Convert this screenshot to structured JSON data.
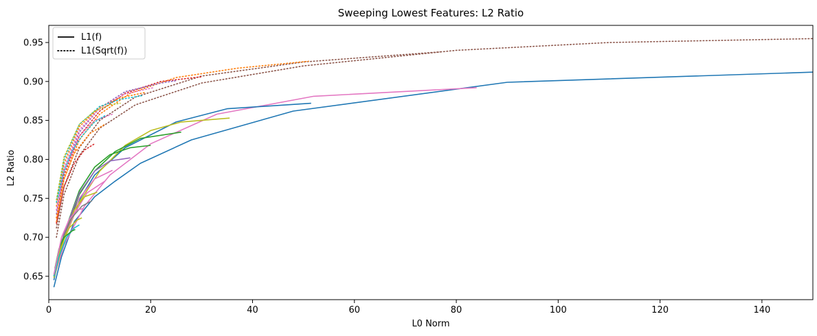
{
  "chart_data": {
    "type": "line",
    "title": "Sweeping Lowest Features: L2 Ratio",
    "xlabel": "L0 Norm",
    "ylabel": "L2 Ratio",
    "xlim": [
      0,
      150
    ],
    "ylim": [
      0.62,
      0.972
    ],
    "xticks": [
      0,
      20,
      40,
      60,
      80,
      100,
      120,
      140
    ],
    "yticks": [
      0.65,
      0.7,
      0.75,
      0.8,
      0.85,
      0.9,
      0.95
    ],
    "grid": false,
    "legend": {
      "placement": "top-left",
      "entries": [
        {
          "label": "L1(f)",
          "style": "solid"
        },
        {
          "label": "L1(Sqrt(f))",
          "style": "dotted"
        }
      ]
    },
    "series": [
      {
        "style": "solid",
        "color": "#1f77b4",
        "points": [
          [
            1.0,
            0.636
          ],
          [
            2.5,
            0.675
          ],
          [
            5,
            0.72
          ],
          [
            9,
            0.752
          ],
          [
            13,
            0.772
          ],
          [
            18,
            0.795
          ],
          [
            28,
            0.825
          ],
          [
            48,
            0.862
          ],
          [
            90,
            0.899
          ],
          [
            150,
            0.912
          ]
        ]
      },
      {
        "style": "solid",
        "color": "#e377c2",
        "points": [
          [
            1.0,
            0.648
          ],
          [
            3,
            0.69
          ],
          [
            7,
            0.74
          ],
          [
            12,
            0.78
          ],
          [
            20,
            0.82
          ],
          [
            33,
            0.858
          ],
          [
            52,
            0.881
          ],
          [
            84,
            0.892
          ]
        ]
      },
      {
        "style": "solid",
        "color": "#1f77b4",
        "points": [
          [
            1.0,
            0.645
          ],
          [
            2.5,
            0.69
          ],
          [
            5,
            0.737
          ],
          [
            9,
            0.78
          ],
          [
            15,
            0.815
          ],
          [
            25,
            0.848
          ],
          [
            35,
            0.865
          ],
          [
            51.5,
            0.872
          ]
        ]
      },
      {
        "style": "solid",
        "color": "#bcbd22",
        "points": [
          [
            1.0,
            0.648
          ],
          [
            3,
            0.697
          ],
          [
            6,
            0.745
          ],
          [
            10,
            0.785
          ],
          [
            15,
            0.818
          ],
          [
            20,
            0.837
          ],
          [
            26,
            0.848
          ],
          [
            35.5,
            0.853
          ]
        ]
      },
      {
        "style": "solid",
        "color": "#2ca02c",
        "points": [
          [
            1.0,
            0.65
          ],
          [
            3,
            0.703
          ],
          [
            6,
            0.755
          ],
          [
            9,
            0.785
          ],
          [
            13,
            0.81
          ],
          [
            18,
            0.827
          ],
          [
            26,
            0.835
          ]
        ]
      },
      {
        "style": "solid",
        "color": "#2ca02c",
        "points": [
          [
            1.0,
            0.652
          ],
          [
            3,
            0.705
          ],
          [
            6,
            0.76
          ],
          [
            9,
            0.79
          ],
          [
            12,
            0.806
          ],
          [
            16,
            0.815
          ],
          [
            20,
            0.818
          ]
        ]
      },
      {
        "style": "solid",
        "color": "#9467bd",
        "points": [
          [
            1.0,
            0.65
          ],
          [
            3,
            0.705
          ],
          [
            6,
            0.757
          ],
          [
            9,
            0.785
          ],
          [
            12,
            0.798
          ],
          [
            16,
            0.802
          ]
        ]
      },
      {
        "style": "solid",
        "color": "#e377c2",
        "points": [
          [
            1.0,
            0.65
          ],
          [
            3,
            0.7
          ],
          [
            6,
            0.75
          ],
          [
            9,
            0.775
          ],
          [
            12.5,
            0.786
          ]
        ]
      },
      {
        "style": "solid",
        "color": "#e377c2",
        "points": [
          [
            1.0,
            0.65
          ],
          [
            3,
            0.7
          ],
          [
            5,
            0.73
          ],
          [
            7.5,
            0.757
          ],
          [
            11,
            0.772
          ]
        ]
      },
      {
        "style": "solid",
        "color": "#bcbd22",
        "points": [
          [
            1.0,
            0.65
          ],
          [
            3,
            0.7
          ],
          [
            5,
            0.735
          ],
          [
            7,
            0.752
          ],
          [
            9.5,
            0.758
          ]
        ]
      },
      {
        "style": "solid",
        "color": "#7f7f7f",
        "points": [
          [
            1.0,
            0.65
          ],
          [
            2.5,
            0.695
          ],
          [
            4.5,
            0.725
          ],
          [
            6.5,
            0.74
          ],
          [
            8.5,
            0.747
          ]
        ]
      },
      {
        "style": "solid",
        "color": "#bcbd22",
        "points": [
          [
            1.0,
            0.65
          ],
          [
            2.5,
            0.69
          ],
          [
            4,
            0.712
          ],
          [
            5.5,
            0.722
          ],
          [
            6.5,
            0.725
          ]
        ]
      },
      {
        "style": "solid",
        "color": "#17becf",
        "points": [
          [
            1.0,
            0.65
          ],
          [
            2,
            0.675
          ],
          [
            3.5,
            0.7
          ],
          [
            5,
            0.712
          ],
          [
            6,
            0.716
          ]
        ]
      },
      {
        "style": "solid",
        "color": "#2ca02c",
        "points": [
          [
            1.2,
            0.66
          ],
          [
            2,
            0.685
          ],
          [
            3,
            0.7
          ],
          [
            4.5,
            0.708
          ],
          [
            5.2,
            0.71
          ]
        ]
      },
      {
        "style": "solid",
        "color": "#e377c2",
        "points": [
          [
            1.0,
            0.652
          ],
          [
            2.5,
            0.7
          ],
          [
            4,
            0.723
          ],
          [
            5.5,
            0.735
          ],
          [
            6.8,
            0.737
          ]
        ]
      },
      {
        "style": "dotted",
        "color": "#8c564b",
        "points": [
          [
            1.5,
            0.7
          ],
          [
            3,
            0.755
          ],
          [
            6,
            0.805
          ],
          [
            10,
            0.84
          ],
          [
            17,
            0.87
          ],
          [
            30,
            0.898
          ],
          [
            50,
            0.92
          ],
          [
            80,
            0.94
          ],
          [
            110,
            0.95
          ],
          [
            150,
            0.955
          ]
        ]
      },
      {
        "style": "dotted",
        "color": "#8c564b",
        "points": [
          [
            1.5,
            0.712
          ],
          [
            3,
            0.765
          ],
          [
            6,
            0.815
          ],
          [
            10,
            0.85
          ],
          [
            17,
            0.88
          ],
          [
            30,
            0.907
          ],
          [
            50,
            0.925
          ],
          [
            77,
            0.938
          ]
        ]
      },
      {
        "style": "dotted",
        "color": "#ff7f0e",
        "points": [
          [
            1.5,
            0.72
          ],
          [
            3,
            0.775
          ],
          [
            6,
            0.825
          ],
          [
            10,
            0.858
          ],
          [
            16,
            0.885
          ],
          [
            25,
            0.905
          ],
          [
            37,
            0.917
          ],
          [
            51,
            0.926
          ]
        ]
      },
      {
        "style": "dotted",
        "color": "#d62728",
        "points": [
          [
            1.5,
            0.725
          ],
          [
            3,
            0.78
          ],
          [
            6,
            0.83
          ],
          [
            10,
            0.862
          ],
          [
            15,
            0.885
          ],
          [
            22,
            0.9
          ],
          [
            30,
            0.906
          ]
        ]
      },
      {
        "style": "dotted",
        "color": "#9467bd",
        "points": [
          [
            1.5,
            0.73
          ],
          [
            3,
            0.785
          ],
          [
            6,
            0.835
          ],
          [
            10,
            0.866
          ],
          [
            15,
            0.887
          ],
          [
            22,
            0.898
          ],
          [
            25,
            0.901
          ]
        ]
      },
      {
        "style": "dotted",
        "color": "#e377c2",
        "points": [
          [
            1.5,
            0.735
          ],
          [
            3,
            0.79
          ],
          [
            6,
            0.838
          ],
          [
            10,
            0.866
          ],
          [
            15,
            0.884
          ],
          [
            20.5,
            0.892
          ]
        ]
      },
      {
        "style": "dotted",
        "color": "#ff7f0e",
        "points": [
          [
            1.5,
            0.74
          ],
          [
            3,
            0.795
          ],
          [
            6,
            0.842
          ],
          [
            10,
            0.867
          ],
          [
            14,
            0.879
          ],
          [
            19,
            0.886
          ]
        ]
      },
      {
        "style": "dotted",
        "color": "#17becf",
        "points": [
          [
            1.5,
            0.745
          ],
          [
            3,
            0.8
          ],
          [
            6,
            0.845
          ],
          [
            10,
            0.868
          ],
          [
            14,
            0.877
          ],
          [
            18.5,
            0.882
          ]
        ]
      },
      {
        "style": "dotted",
        "color": "#bcbd22",
        "points": [
          [
            1.5,
            0.748
          ],
          [
            3,
            0.803
          ],
          [
            6,
            0.845
          ],
          [
            9,
            0.862
          ],
          [
            12,
            0.87
          ],
          [
            14,
            0.872
          ]
        ]
      },
      {
        "style": "dotted",
        "color": "#e377c2",
        "points": [
          [
            1.5,
            0.735
          ],
          [
            3,
            0.785
          ],
          [
            6,
            0.83
          ],
          [
            9,
            0.85
          ],
          [
            12.5,
            0.858
          ]
        ]
      },
      {
        "style": "dotted",
        "color": "#ff7f0e",
        "points": [
          [
            1.5,
            0.725
          ],
          [
            3,
            0.775
          ],
          [
            5,
            0.808
          ],
          [
            8,
            0.833
          ],
          [
            11,
            0.845
          ]
        ]
      },
      {
        "style": "dotted",
        "color": "#d62728",
        "points": [
          [
            1.5,
            0.718
          ],
          [
            3,
            0.765
          ],
          [
            5,
            0.795
          ],
          [
            7,
            0.812
          ],
          [
            9,
            0.82
          ]
        ]
      },
      {
        "style": "dotted",
        "color": "#17becf",
        "points": [
          [
            1.8,
            0.752
          ],
          [
            3,
            0.785
          ],
          [
            4.5,
            0.81
          ],
          [
            6.5,
            0.83
          ],
          [
            9,
            0.848
          ],
          [
            11,
            0.856
          ]
        ]
      }
    ]
  }
}
